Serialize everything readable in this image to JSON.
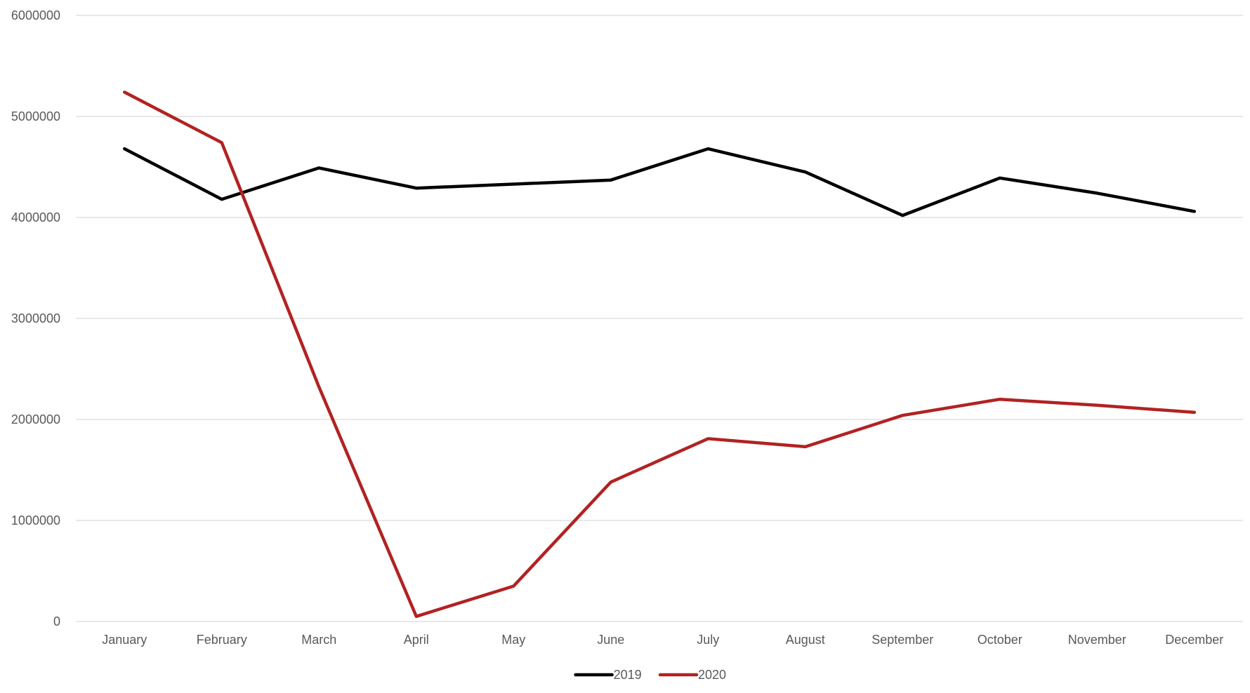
{
  "chart_data": {
    "type": "line",
    "title": "",
    "xlabel": "",
    "ylabel": "",
    "categories": [
      "January",
      "February",
      "March",
      "April",
      "May",
      "June",
      "July",
      "August",
      "September",
      "October",
      "November",
      "December"
    ],
    "ylim": [
      0,
      6000000
    ],
    "yticks": [
      0,
      1000000,
      2000000,
      3000000,
      4000000,
      5000000,
      6000000
    ],
    "ytick_labels": [
      "0",
      "1000000",
      "2000000",
      "3000000",
      "4000000",
      "5000000",
      "6000000"
    ],
    "grid": true,
    "legend_position": "bottom",
    "series": [
      {
        "name": "2019",
        "color": "#000000",
        "values": [
          4680000,
          4180000,
          4490000,
          4290000,
          4330000,
          4370000,
          4680000,
          4450000,
          4020000,
          4390000,
          4240000,
          4060000
        ]
      },
      {
        "name": "2020",
        "color": "#b22222",
        "values": [
          5240000,
          4740000,
          2320000,
          50000,
          350000,
          1380000,
          1810000,
          1730000,
          2040000,
          2200000,
          2140000,
          2070000
        ]
      }
    ]
  }
}
